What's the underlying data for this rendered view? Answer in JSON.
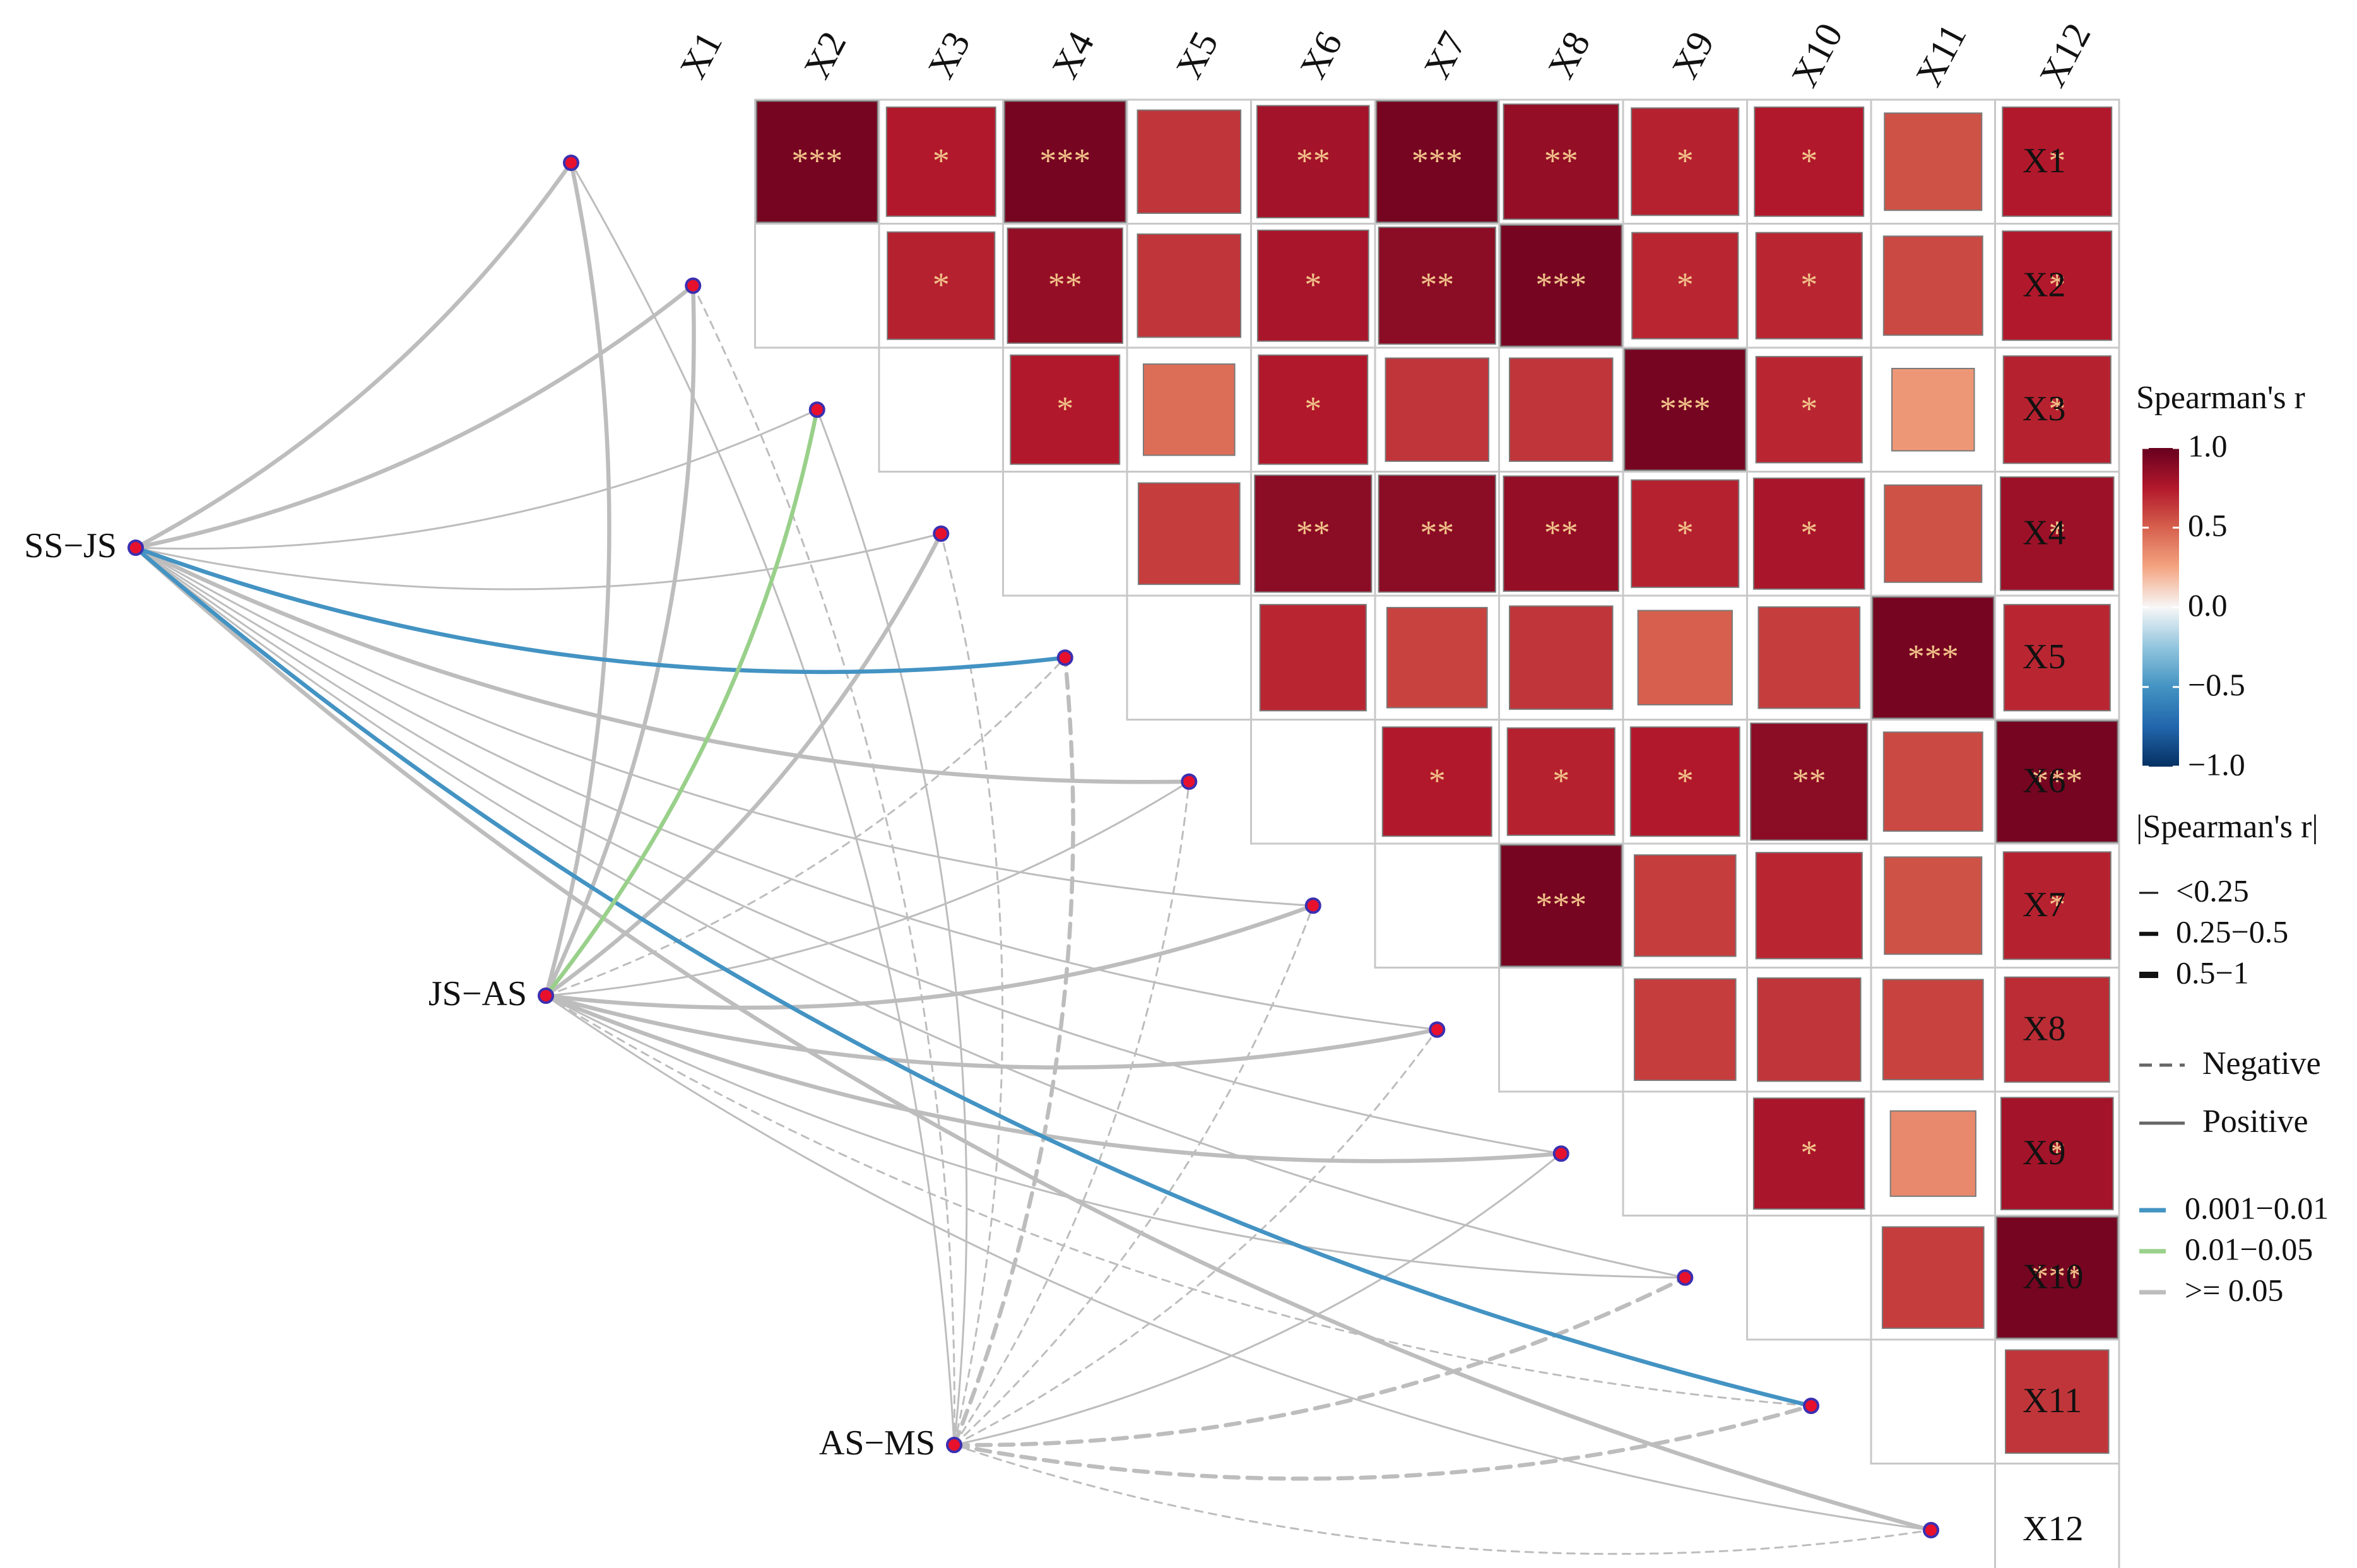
{
  "chart_data": {
    "type": "heatmap",
    "subtype": "mantel-correlogram",
    "variables": [
      "X1",
      "X2",
      "X3",
      "X4",
      "X5",
      "X6",
      "X7",
      "X8",
      "X9",
      "X10",
      "X11",
      "X12"
    ],
    "fill_limits": [
      -1.0,
      1.0
    ],
    "note": "Upper-triangle Spearman correlation matrix (values estimated from color) with significance stars; curved links connect Mantel test groups to variables.",
    "cells": [
      {
        "r": "X1",
        "c": "X2",
        "v": 0.95,
        "sig": "***"
      },
      {
        "r": "X1",
        "c": "X3",
        "v": 0.75,
        "sig": "*"
      },
      {
        "r": "X1",
        "c": "X4",
        "v": 0.95,
        "sig": "***"
      },
      {
        "r": "X1",
        "c": "X5",
        "v": 0.65,
        "sig": ""
      },
      {
        "r": "X1",
        "c": "X6",
        "v": 0.8,
        "sig": "**"
      },
      {
        "r": "X1",
        "c": "X7",
        "v": 0.95,
        "sig": "***"
      },
      {
        "r": "X1",
        "c": "X8",
        "v": 0.85,
        "sig": "**"
      },
      {
        "r": "X1",
        "c": "X9",
        "v": 0.72,
        "sig": "*"
      },
      {
        "r": "X1",
        "c": "X10",
        "v": 0.75,
        "sig": "*"
      },
      {
        "r": "X1",
        "c": "X11",
        "v": 0.55,
        "sig": ""
      },
      {
        "r": "X1",
        "c": "X12",
        "v": 0.75,
        "sig": "*"
      },
      {
        "r": "X2",
        "c": "X3",
        "v": 0.72,
        "sig": "*"
      },
      {
        "r": "X2",
        "c": "X4",
        "v": 0.85,
        "sig": "**"
      },
      {
        "r": "X2",
        "c": "X5",
        "v": 0.65,
        "sig": ""
      },
      {
        "r": "X2",
        "c": "X6",
        "v": 0.78,
        "sig": "*"
      },
      {
        "r": "X2",
        "c": "X7",
        "v": 0.88,
        "sig": "**"
      },
      {
        "r": "X2",
        "c": "X8",
        "v": 0.95,
        "sig": "***"
      },
      {
        "r": "X2",
        "c": "X9",
        "v": 0.7,
        "sig": "*"
      },
      {
        "r": "X2",
        "c": "X10",
        "v": 0.7,
        "sig": "*"
      },
      {
        "r": "X2",
        "c": "X11",
        "v": 0.58,
        "sig": ""
      },
      {
        "r": "X2",
        "c": "X12",
        "v": 0.75,
        "sig": "*"
      },
      {
        "r": "X3",
        "c": "X4",
        "v": 0.75,
        "sig": "*"
      },
      {
        "r": "X3",
        "c": "X5",
        "v": 0.45,
        "sig": ""
      },
      {
        "r": "X3",
        "c": "X6",
        "v": 0.75,
        "sig": "*"
      },
      {
        "r": "X3",
        "c": "X7",
        "v": 0.65,
        "sig": ""
      },
      {
        "r": "X3",
        "c": "X8",
        "v": 0.65,
        "sig": ""
      },
      {
        "r": "X3",
        "c": "X9",
        "v": 0.95,
        "sig": "***"
      },
      {
        "r": "X3",
        "c": "X10",
        "v": 0.7,
        "sig": "*"
      },
      {
        "r": "X3",
        "c": "X11",
        "v": 0.3,
        "sig": ""
      },
      {
        "r": "X3",
        "c": "X12",
        "v": 0.72,
        "sig": "*"
      },
      {
        "r": "X4",
        "c": "X5",
        "v": 0.62,
        "sig": ""
      },
      {
        "r": "X4",
        "c": "X6",
        "v": 0.88,
        "sig": "**"
      },
      {
        "r": "X4",
        "c": "X7",
        "v": 0.88,
        "sig": "**"
      },
      {
        "r": "X4",
        "c": "X8",
        "v": 0.85,
        "sig": "**"
      },
      {
        "r": "X4",
        "c": "X9",
        "v": 0.72,
        "sig": "*"
      },
      {
        "r": "X4",
        "c": "X10",
        "v": 0.78,
        "sig": "*"
      },
      {
        "r": "X4",
        "c": "X11",
        "v": 0.55,
        "sig": ""
      },
      {
        "r": "X4",
        "c": "X12",
        "v": 0.82,
        "sig": "*"
      },
      {
        "r": "X5",
        "c": "X6",
        "v": 0.7,
        "sig": ""
      },
      {
        "r": "X5",
        "c": "X7",
        "v": 0.6,
        "sig": ""
      },
      {
        "r": "X5",
        "c": "X8",
        "v": 0.65,
        "sig": ""
      },
      {
        "r": "X5",
        "c": "X9",
        "v": 0.5,
        "sig": ""
      },
      {
        "r": "X5",
        "c": "X10",
        "v": 0.62,
        "sig": ""
      },
      {
        "r": "X5",
        "c": "X11",
        "v": 0.95,
        "sig": "***"
      },
      {
        "r": "X5",
        "c": "X12",
        "v": 0.7,
        "sig": ""
      },
      {
        "r": "X6",
        "c": "X7",
        "v": 0.75,
        "sig": "*"
      },
      {
        "r": "X6",
        "c": "X8",
        "v": 0.72,
        "sig": "*"
      },
      {
        "r": "X6",
        "c": "X9",
        "v": 0.75,
        "sig": "*"
      },
      {
        "r": "X6",
        "c": "X10",
        "v": 0.88,
        "sig": "**"
      },
      {
        "r": "X6",
        "c": "X11",
        "v": 0.58,
        "sig": ""
      },
      {
        "r": "X6",
        "c": "X12",
        "v": 0.95,
        "sig": "***"
      },
      {
        "r": "X7",
        "c": "X8",
        "v": 0.95,
        "sig": "***"
      },
      {
        "r": "X7",
        "c": "X9",
        "v": 0.62,
        "sig": ""
      },
      {
        "r": "X7",
        "c": "X10",
        "v": 0.7,
        "sig": ""
      },
      {
        "r": "X7",
        "c": "X11",
        "v": 0.55,
        "sig": ""
      },
      {
        "r": "X7",
        "c": "X12",
        "v": 0.72,
        "sig": "*"
      },
      {
        "r": "X8",
        "c": "X9",
        "v": 0.62,
        "sig": ""
      },
      {
        "r": "X8",
        "c": "X10",
        "v": 0.65,
        "sig": ""
      },
      {
        "r": "X8",
        "c": "X11",
        "v": 0.6,
        "sig": ""
      },
      {
        "r": "X8",
        "c": "X12",
        "v": 0.68,
        "sig": ""
      },
      {
        "r": "X9",
        "c": "X10",
        "v": 0.78,
        "sig": "*"
      },
      {
        "r": "X9",
        "c": "X11",
        "v": 0.35,
        "sig": ""
      },
      {
        "r": "X9",
        "c": "X12",
        "v": 0.8,
        "sig": "*"
      },
      {
        "r": "X10",
        "c": "X11",
        "v": 0.62,
        "sig": ""
      },
      {
        "r": "X10",
        "c": "X12",
        "v": 0.95,
        "sig": "***"
      },
      {
        "r": "X11",
        "c": "X12",
        "v": 0.65,
        "sig": ""
      }
    ],
    "mantel_groups": [
      "SS−JS",
      "JS−AS",
      "AS−MS"
    ],
    "links": [
      {
        "from": "SS−JS",
        "to": "X1",
        "r": "0.25−0.5",
        "p": ">= 0.05",
        "sign": "Positive"
      },
      {
        "from": "SS−JS",
        "to": "X2",
        "r": "0.25−0.5",
        "p": ">= 0.05",
        "sign": "Positive"
      },
      {
        "from": "SS−JS",
        "to": "X3",
        "r": "<0.25",
        "p": ">= 0.05",
        "sign": "Positive"
      },
      {
        "from": "SS−JS",
        "to": "X4",
        "r": "<0.25",
        "p": ">= 0.05",
        "sign": "Positive"
      },
      {
        "from": "SS−JS",
        "to": "X5",
        "r": "0.25−0.5",
        "p": "0.001−0.01",
        "sign": "Positive"
      },
      {
        "from": "SS−JS",
        "to": "X6",
        "r": "0.25−0.5",
        "p": ">= 0.05",
        "sign": "Positive"
      },
      {
        "from": "SS−JS",
        "to": "X7",
        "r": "<0.25",
        "p": ">= 0.05",
        "sign": "Positive"
      },
      {
        "from": "SS−JS",
        "to": "X8",
        "r": "<0.25",
        "p": ">= 0.05",
        "sign": "Positive"
      },
      {
        "from": "SS−JS",
        "to": "X9",
        "r": "<0.25",
        "p": ">= 0.05",
        "sign": "Positive"
      },
      {
        "from": "SS−JS",
        "to": "X10",
        "r": "<0.25",
        "p": ">= 0.05",
        "sign": "Positive"
      },
      {
        "from": "SS−JS",
        "to": "X11",
        "r": "0.25−0.5",
        "p": "0.001−0.01",
        "sign": "Positive"
      },
      {
        "from": "SS−JS",
        "to": "X12",
        "r": "0.25−0.5",
        "p": ">= 0.05",
        "sign": "Positive"
      },
      {
        "from": "JS−AS",
        "to": "X1",
        "r": "0.25−0.5",
        "p": ">= 0.05",
        "sign": "Positive"
      },
      {
        "from": "JS−AS",
        "to": "X2",
        "r": "0.25−0.5",
        "p": ">= 0.05",
        "sign": "Positive"
      },
      {
        "from": "JS−AS",
        "to": "X3",
        "r": "0.25−0.5",
        "p": "0.01−0.05",
        "sign": "Positive"
      },
      {
        "from": "JS−AS",
        "to": "X4",
        "r": "0.25−0.5",
        "p": ">= 0.05",
        "sign": "Positive"
      },
      {
        "from": "JS−AS",
        "to": "X5",
        "r": "<0.25",
        "p": ">= 0.05",
        "sign": "Negative"
      },
      {
        "from": "JS−AS",
        "to": "X6",
        "r": "<0.25",
        "p": ">= 0.05",
        "sign": "Positive"
      },
      {
        "from": "JS−AS",
        "to": "X7",
        "r": "0.25−0.5",
        "p": ">= 0.05",
        "sign": "Positive"
      },
      {
        "from": "JS−AS",
        "to": "X8",
        "r": "0.25−0.5",
        "p": ">= 0.05",
        "sign": "Positive"
      },
      {
        "from": "JS−AS",
        "to": "X9",
        "r": "0.25−0.5",
        "p": ">= 0.05",
        "sign": "Positive"
      },
      {
        "from": "JS−AS",
        "to": "X10",
        "r": "<0.25",
        "p": ">= 0.05",
        "sign": "Positive"
      },
      {
        "from": "JS−AS",
        "to": "X11",
        "r": "<0.25",
        "p": ">= 0.05",
        "sign": "Negative"
      },
      {
        "from": "JS−AS",
        "to": "X12",
        "r": "<0.25",
        "p": ">= 0.05",
        "sign": "Positive"
      },
      {
        "from": "AS−MS",
        "to": "X1",
        "r": "<0.25",
        "p": ">= 0.05",
        "sign": "Positive"
      },
      {
        "from": "AS−MS",
        "to": "X2",
        "r": "<0.25",
        "p": ">= 0.05",
        "sign": "Negative"
      },
      {
        "from": "AS−MS",
        "to": "X3",
        "r": "<0.25",
        "p": ">= 0.05",
        "sign": "Positive"
      },
      {
        "from": "AS−MS",
        "to": "X4",
        "r": "<0.25",
        "p": ">= 0.05",
        "sign": "Negative"
      },
      {
        "from": "AS−MS",
        "to": "X5",
        "r": "0.25−0.5",
        "p": ">= 0.05",
        "sign": "Negative"
      },
      {
        "from": "AS−MS",
        "to": "X6",
        "r": "<0.25",
        "p": ">= 0.05",
        "sign": "Negative"
      },
      {
        "from": "AS−MS",
        "to": "X7",
        "r": "<0.25",
        "p": ">= 0.05",
        "sign": "Negative"
      },
      {
        "from": "AS−MS",
        "to": "X8",
        "r": "<0.25",
        "p": ">= 0.05",
        "sign": "Negative"
      },
      {
        "from": "AS−MS",
        "to": "X9",
        "r": "<0.25",
        "p": ">= 0.05",
        "sign": "Positive"
      },
      {
        "from": "AS−MS",
        "to": "X10",
        "r": "0.25−0.5",
        "p": ">= 0.05",
        "sign": "Negative"
      },
      {
        "from": "AS−MS",
        "to": "X11",
        "r": "0.25−0.5",
        "p": ">= 0.05",
        "sign": "Negative"
      },
      {
        "from": "AS−MS",
        "to": "X12",
        "r": "<0.25",
        "p": ">= 0.05",
        "sign": "Negative"
      }
    ],
    "legend": {
      "fill_title": "Spearman's r",
      "fill_ticks": [
        "1.0",
        "0.5",
        "0.0",
        "−0.5",
        "−1.0"
      ],
      "fill_tick_values": [
        1.0,
        0.5,
        0.0,
        -0.5,
        -1.0
      ],
      "width_title": "|Spearman's r|",
      "width_items": [
        "<0.25",
        "0.25−0.5",
        "0.5−1"
      ],
      "linetype_items": [
        "Negative",
        "Positive"
      ],
      "color_items": [
        "0.001−0.01",
        "0.01−0.05",
        ">= 0.05"
      ],
      "placement": "right"
    },
    "colors": {
      "pos_max": "#67001F",
      "pos_mid": "#D6604D",
      "zero": "#F7F7F7",
      "neg_mid": "#4393C3",
      "neg_max": "#053061",
      "link_p_001_01": "#4393C3",
      "link_p_01_05": "#99D08A",
      "link_p_ge_05": "#BDBDBD",
      "node_fill": "#E8112D",
      "node_stroke": "#3B2FB0",
      "star": "#F2C38A",
      "grid": "#C8C8C8"
    }
  }
}
